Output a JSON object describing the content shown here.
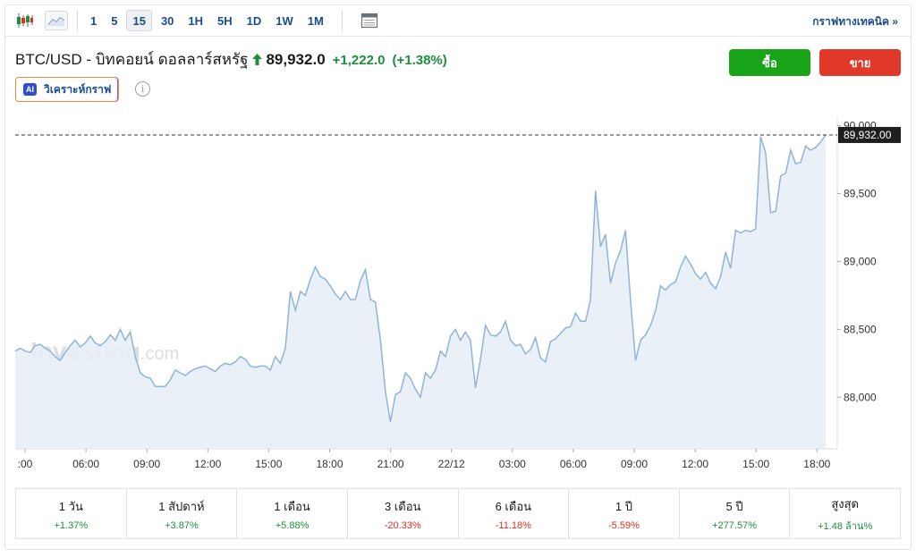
{
  "toolbar": {
    "timeframes": [
      "1",
      "5",
      "15",
      "30",
      "1H",
      "5H",
      "1D",
      "1W",
      "1M"
    ],
    "active_timeframe": "15",
    "technical_link": "กราฟทางเทคนิค »"
  },
  "header": {
    "instrument": "BTC/USD - บิทคอยน์ ดอลลาร์สหรัฐ",
    "price": "89,932.0",
    "change": "+1,222.0",
    "change_pct": "(+1.38%)",
    "ai_badge": "AI",
    "ai_label": "วิเคราะห์กราฟ",
    "buy_label": "ซื้อ",
    "sell_label": "ขาย"
  },
  "colors": {
    "up": "#1e8e3e",
    "down": "#d93025",
    "buy": "#19a319",
    "sell": "#e0392a",
    "line": "#8fb4d8",
    "area": "#e8eef7"
  },
  "icons": [
    "candlestick-icon",
    "line-chart-icon",
    "calendar-icon",
    "up-arrow-icon",
    "info-icon"
  ],
  "chart_data": {
    "type": "area",
    "watermark": "Investing.com",
    "x_ticks": [
      ":00",
      "06:00",
      "09:00",
      "12:00",
      "15:00",
      "18:00",
      "21:00",
      "22/12",
      "03:00",
      "06:00",
      "09:00",
      "12:00",
      "15:00",
      "18:00"
    ],
    "y_ticks": [
      "88,000",
      "88,500",
      "89,000",
      "89,500",
      "90,000"
    ],
    "ylim": [
      87620,
      90070
    ],
    "current_price_label": "89,932.00",
    "current_price": 89932,
    "grid": false,
    "series": [
      {
        "values": [
          88340,
          88360,
          88340,
          88330,
          88380,
          88390,
          88360,
          88340,
          88300,
          88270,
          88330,
          88380,
          88420,
          88370,
          88400,
          88450,
          88400,
          88380,
          88410,
          88460,
          88420,
          88500,
          88420,
          88480,
          88300,
          88180,
          88150,
          88140,
          88080,
          88080,
          88080,
          88130,
          88200,
          88180,
          88160,
          88190,
          88210,
          88220,
          88230,
          88210,
          88190,
          88230,
          88250,
          88240,
          88260,
          88300,
          88280,
          88230,
          88220,
          88230,
          88230,
          88200,
          88300,
          88250,
          88360,
          88780,
          88640,
          88780,
          88750,
          88870,
          88960,
          88890,
          88870,
          88820,
          88760,
          88720,
          88780,
          88720,
          88720,
          88860,
          88940,
          88720,
          88700,
          88420,
          88040,
          87820,
          88020,
          88040,
          88180,
          88140,
          88060,
          88000,
          88180,
          88140,
          88200,
          88340,
          88300,
          88450,
          88500,
          88420,
          88480,
          88420,
          88070,
          88280,
          88530,
          88460,
          88450,
          88480,
          88560,
          88420,
          88380,
          88390,
          88320,
          88350,
          88440,
          88290,
          88260,
          88410,
          88430,
          88470,
          88510,
          88520,
          88620,
          88560,
          88560,
          88720,
          89520,
          89110,
          89200,
          88840,
          88990,
          89080,
          89230,
          88710,
          88270,
          88420,
          88460,
          88530,
          88640,
          88820,
          88790,
          88830,
          88850,
          88960,
          89040,
          88980,
          88910,
          88870,
          88920,
          88840,
          88800,
          88890,
          89070,
          88950,
          89230,
          89210,
          89230,
          89220,
          89240,
          89920,
          89800,
          89360,
          89370,
          89630,
          89650,
          89820,
          89720,
          89730,
          89850,
          89820,
          89840,
          89880,
          89932
        ]
      }
    ]
  },
  "periods": [
    {
      "label": "1 วัน",
      "value": "+1.37%",
      "dir": "pos"
    },
    {
      "label": "1 สัปดาห์",
      "value": "+3.87%",
      "dir": "pos"
    },
    {
      "label": "1 เดือน",
      "value": "+5.88%",
      "dir": "pos"
    },
    {
      "label": "3 เดือน",
      "value": "-20.33%",
      "dir": "neg"
    },
    {
      "label": "6 เดือน",
      "value": "-11.18%",
      "dir": "neg"
    },
    {
      "label": "1 ปี",
      "value": "-5.59%",
      "dir": "neg"
    },
    {
      "label": "5 ปี",
      "value": "+277.57%",
      "dir": "pos"
    },
    {
      "label": "สูงสุด",
      "value": "+1.48 ล้าน%",
      "dir": "pos"
    }
  ]
}
